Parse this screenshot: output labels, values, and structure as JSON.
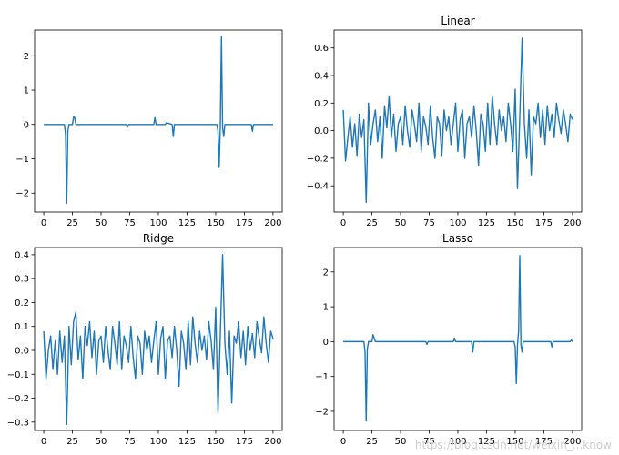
{
  "figure": {
    "watermark": "https://blog.csdn.net/weixin_...know"
  },
  "chart_data": [
    {
      "type": "line",
      "title": "",
      "xlabel": "",
      "ylabel": "",
      "xlim": [
        -8,
        208
      ],
      "ylim": [
        -2.55,
        2.75
      ],
      "xticks": [
        0,
        25,
        50,
        75,
        100,
        125,
        150,
        175,
        200
      ],
      "yticks": [
        -2,
        -1,
        0,
        1,
        2
      ],
      "ytick_labels": [
        "−2",
        "−1",
        "0",
        "1",
        "2"
      ],
      "color": "#1f77b4",
      "series": [
        {
          "x": [
            0,
            18,
            19,
            20,
            21,
            22,
            25,
            26,
            27,
            28,
            72,
            73,
            74,
            96,
            97,
            98,
            106,
            107,
            112,
            113,
            114,
            151,
            152,
            153,
            154,
            155,
            156,
            157,
            158,
            181,
            182,
            183,
            200
          ],
          "y": [
            0,
            0,
            -0.3,
            -2.3,
            -0.2,
            0,
            0,
            0.22,
            0.2,
            0,
            0,
            -0.08,
            0,
            0,
            0.2,
            0,
            0,
            0.05,
            0,
            -0.35,
            0,
            0,
            -0.2,
            -1.25,
            -0.1,
            2.55,
            -0.1,
            -0.35,
            0,
            0,
            -0.2,
            0,
            0
          ]
        }
      ]
    },
    {
      "type": "line",
      "title": "Linear",
      "xlabel": "",
      "ylabel": "",
      "xlim": [
        -8,
        208
      ],
      "ylim": [
        -0.59,
        0.73
      ],
      "xticks": [
        0,
        25,
        50,
        75,
        100,
        125,
        150,
        175,
        200
      ],
      "yticks": [
        -0.4,
        -0.2,
        0.0,
        0.2,
        0.4,
        0.6
      ],
      "ytick_labels": [
        "−0.4",
        "−0.2",
        "0.0",
        "0.2",
        "0.4",
        "0.6"
      ],
      "color": "#1f77b4",
      "series": [
        {
          "x": [
            0,
            2,
            4,
            6,
            8,
            10,
            12,
            14,
            16,
            18,
            20,
            22,
            24,
            26,
            28,
            30,
            32,
            34,
            36,
            38,
            40,
            42,
            44,
            46,
            48,
            50,
            52,
            54,
            56,
            58,
            60,
            62,
            64,
            66,
            68,
            70,
            72,
            74,
            76,
            78,
            80,
            82,
            84,
            86,
            88,
            90,
            92,
            94,
            96,
            98,
            100,
            102,
            104,
            106,
            108,
            110,
            112,
            114,
            116,
            118,
            120,
            122,
            124,
            126,
            128,
            130,
            132,
            134,
            136,
            138,
            140,
            142,
            144,
            146,
            148,
            150,
            152,
            154,
            156,
            158,
            160,
            162,
            164,
            166,
            168,
            170,
            172,
            174,
            176,
            178,
            180,
            182,
            184,
            186,
            188,
            190,
            192,
            194,
            196,
            198,
            200
          ],
          "y": [
            0.15,
            -0.22,
            -0.05,
            0.1,
            -0.12,
            0.05,
            -0.18,
            0.12,
            -0.05,
            0.08,
            -0.52,
            0.2,
            -0.1,
            0.05,
            0.15,
            -0.08,
            0.1,
            -0.2,
            0.18,
            0.02,
            0.25,
            -0.05,
            0.12,
            -0.15,
            0.05,
            0.1,
            -0.1,
            0.18,
            0.0,
            -0.12,
            0.15,
            0.05,
            -0.08,
            0.2,
            -0.15,
            0.1,
            0.03,
            -0.1,
            0.18,
            -0.05,
            -0.2,
            0.1,
            0.05,
            -0.18,
            0.15,
            0.0,
            0.1,
            -0.1,
            0.05,
            0.2,
            -0.15,
            0.08,
            0.15,
            -0.2,
            0.05,
            0.1,
            -0.05,
            0.18,
            0.0,
            -0.25,
            0.12,
            0.05,
            -0.15,
            0.2,
            -0.1,
            0.25,
            0.05,
            -0.1,
            0.15,
            0.0,
            0.1,
            -0.08,
            0.2,
            0.05,
            -0.15,
            0.3,
            -0.42,
            0.1,
            0.67,
            0.05,
            -0.2,
            0.15,
            -0.32,
            0.1,
            0.05,
            0.2,
            -0.05,
            0.15,
            -0.1,
            0.18,
            0.0,
            0.12,
            -0.05,
            0.2,
            0.08,
            -0.02,
            0.15,
            0.05,
            -0.08,
            0.12,
            0.08
          ]
        }
      ]
    },
    {
      "type": "line",
      "title": "Ridge",
      "xlabel": "",
      "ylabel": "",
      "xlim": [
        -8,
        208
      ],
      "ylim": [
        -0.335,
        0.43
      ],
      "xticks": [
        0,
        25,
        50,
        75,
        100,
        125,
        150,
        175,
        200
      ],
      "yticks": [
        -0.3,
        -0.2,
        -0.1,
        0.0,
        0.1,
        0.2,
        0.3,
        0.4
      ],
      "ytick_labels": [
        "−0.3",
        "−0.2",
        "−0.1",
        "0.0",
        "0.1",
        "0.2",
        "0.3",
        "0.4"
      ],
      "color": "#1f77b4",
      "series": [
        {
          "x": [
            0,
            2,
            4,
            6,
            8,
            10,
            12,
            14,
            16,
            18,
            20,
            22,
            24,
            26,
            28,
            30,
            32,
            34,
            36,
            38,
            40,
            42,
            44,
            46,
            48,
            50,
            52,
            54,
            56,
            58,
            60,
            62,
            64,
            66,
            68,
            70,
            72,
            74,
            76,
            78,
            80,
            82,
            84,
            86,
            88,
            90,
            92,
            94,
            96,
            98,
            100,
            102,
            104,
            106,
            108,
            110,
            112,
            114,
            116,
            118,
            120,
            122,
            124,
            126,
            128,
            130,
            132,
            134,
            136,
            138,
            140,
            142,
            144,
            146,
            148,
            150,
            152,
            154,
            156,
            158,
            160,
            162,
            164,
            166,
            168,
            170,
            172,
            174,
            176,
            178,
            180,
            182,
            184,
            186,
            188,
            190,
            192,
            194,
            196,
            198,
            200
          ],
          "y": [
            0.08,
            -0.12,
            0.0,
            0.06,
            -0.08,
            0.04,
            -0.1,
            0.08,
            -0.05,
            0.06,
            -0.31,
            0.1,
            -0.06,
            0.12,
            0.16,
            -0.04,
            0.06,
            -0.12,
            0.1,
            0.02,
            0.12,
            -0.03,
            0.08,
            -0.1,
            0.04,
            0.06,
            -0.05,
            0.1,
            0.0,
            -0.08,
            0.1,
            0.03,
            -0.06,
            0.12,
            -0.08,
            0.06,
            0.02,
            -0.05,
            0.1,
            -0.03,
            -0.12,
            0.06,
            0.03,
            -0.1,
            0.08,
            0.0,
            0.06,
            -0.05,
            0.04,
            0.12,
            -0.1,
            0.05,
            0.1,
            -0.12,
            0.04,
            0.06,
            -0.03,
            0.1,
            0.0,
            -0.15,
            0.08,
            0.03,
            -0.08,
            0.12,
            -0.06,
            0.14,
            0.03,
            -0.05,
            0.08,
            0.0,
            0.06,
            -0.04,
            0.12,
            0.04,
            -0.08,
            0.18,
            -0.26,
            0.06,
            0.4,
            0.03,
            -0.1,
            0.08,
            -0.22,
            0.06,
            0.03,
            0.12,
            -0.03,
            0.08,
            -0.06,
            0.1,
            0.0,
            0.07,
            -0.03,
            0.12,
            0.05,
            -0.01,
            0.14,
            0.03,
            -0.05,
            0.08,
            0.05
          ]
        }
      ]
    },
    {
      "type": "line",
      "title": "Lasso",
      "xlabel": "",
      "ylabel": "",
      "xlim": [
        -8,
        208
      ],
      "ylim": [
        -2.55,
        2.7
      ],
      "xticks": [
        0,
        25,
        50,
        75,
        100,
        125,
        150,
        175,
        200
      ],
      "yticks": [
        -2,
        -1,
        0,
        1,
        2
      ],
      "ytick_labels": [
        "−2",
        "−1",
        "0",
        "1",
        "2"
      ],
      "color": "#1f77b4",
      "series": [
        {
          "x": [
            0,
            18,
            19,
            20,
            21,
            22,
            25,
            26,
            27,
            28,
            72,
            73,
            74,
            96,
            97,
            98,
            112,
            113,
            114,
            149,
            150,
            151,
            152,
            153,
            154,
            155,
            156,
            157,
            158,
            181,
            182,
            183,
            198,
            199,
            200
          ],
          "y": [
            0,
            0,
            -0.3,
            -2.28,
            -0.2,
            0,
            0,
            0.2,
            0.1,
            0,
            0,
            -0.08,
            0,
            0,
            0.1,
            0,
            0,
            -0.3,
            0,
            0,
            -0.15,
            -1.2,
            -0.1,
            0.3,
            2.47,
            -0.1,
            -0.3,
            0,
            0,
            0,
            -0.15,
            0,
            0,
            0.05,
            0
          ]
        }
      ]
    }
  ]
}
